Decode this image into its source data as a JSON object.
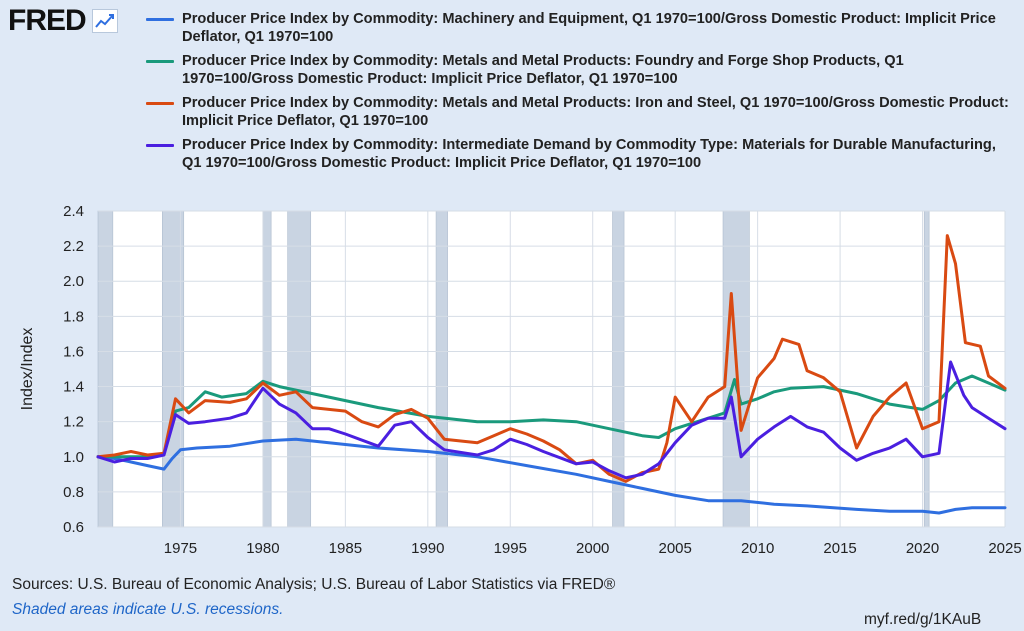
{
  "header": {
    "logo_text": "FRED",
    "logo_icon": "line-chart-icon"
  },
  "legend": [
    {
      "label": "Producer Price Index by Commodity: Machinery and Equipment, Q1 1970=100/Gross Domestic Product: Implicit Price Deflator, Q1 1970=100",
      "color": "#2f6fe0"
    },
    {
      "label": "Producer Price Index by Commodity: Metals and Metal Products: Foundry and Forge Shop Products, Q1 1970=100/Gross Domestic Product: Implicit Price Deflator, Q1 1970=100",
      "color": "#1a9a7c"
    },
    {
      "label": "Producer Price Index by Commodity: Metals and Metal Products: Iron and Steel, Q1 1970=100/Gross Domestic Product: Implicit Price Deflator, Q1 1970=100",
      "color": "#d94a12"
    },
    {
      "label": "Producer Price Index by Commodity: Intermediate Demand by Commodity Type: Materials for Durable Manufacturing, Q1 1970=100/Gross Domestic Product: Implicit Price Deflator, Q1 1970=100",
      "color": "#4a1fe0"
    }
  ],
  "chart_data": {
    "type": "line",
    "title": "",
    "xlabel": "",
    "ylabel": "Index/Index",
    "xlim": [
      1970,
      2025
    ],
    "ylim": [
      0.6,
      2.4
    ],
    "x_ticks": [
      "1975",
      "1980",
      "1985",
      "1990",
      "1995",
      "2000",
      "2005",
      "2010",
      "2015",
      "2020",
      "2025"
    ],
    "y_ticks": [
      "0.6",
      "0.8",
      "1.0",
      "1.2",
      "1.4",
      "1.6",
      "1.8",
      "2.0",
      "2.2",
      "2.4"
    ],
    "grid": true,
    "recessions": [
      [
        1970.0,
        1970.9
      ],
      [
        1973.9,
        1975.2
      ],
      [
        1980.0,
        1980.5
      ],
      [
        1981.5,
        1982.9
      ],
      [
        1990.5,
        1991.2
      ],
      [
        2001.2,
        2001.9
      ],
      [
        2007.9,
        2009.5
      ],
      [
        2020.1,
        2020.4
      ]
    ],
    "series": [
      {
        "name": "Producer Price Index by Commodity: Machinery and Equipment, Q1 1970=100/Gross Domestic Product: Implicit Price Deflator, Q1 1970=100",
        "color": "#2f6fe0",
        "points": [
          [
            1970,
            1.0
          ],
          [
            1971,
            0.99
          ],
          [
            1972,
            0.97
          ],
          [
            1973,
            0.95
          ],
          [
            1974,
            0.93
          ],
          [
            1974.5,
            0.99
          ],
          [
            1975,
            1.04
          ],
          [
            1976,
            1.05
          ],
          [
            1978,
            1.06
          ],
          [
            1980,
            1.09
          ],
          [
            1982,
            1.1
          ],
          [
            1983,
            1.09
          ],
          [
            1985,
            1.07
          ],
          [
            1987,
            1.05
          ],
          [
            1990,
            1.03
          ],
          [
            1993,
            1.0
          ],
          [
            1996,
            0.95
          ],
          [
            1999,
            0.9
          ],
          [
            2001,
            0.86
          ],
          [
            2003,
            0.82
          ],
          [
            2005,
            0.78
          ],
          [
            2007,
            0.75
          ],
          [
            2009,
            0.75
          ],
          [
            2011,
            0.73
          ],
          [
            2013,
            0.72
          ],
          [
            2016,
            0.7
          ],
          [
            2018,
            0.69
          ],
          [
            2020,
            0.69
          ],
          [
            2021,
            0.68
          ],
          [
            2022,
            0.7
          ],
          [
            2023,
            0.71
          ],
          [
            2025,
            0.71
          ]
        ]
      },
      {
        "name": "Producer Price Index by Commodity: Metals and Metal Products: Foundry and Forge Shop Products, Q1 1970=100/Gross Domestic Product: Implicit Price Deflator, Q1 1970=100",
        "color": "#1a9a7c",
        "points": [
          [
            1970,
            1.0
          ],
          [
            1971,
            1.0
          ],
          [
            1972,
            1.0
          ],
          [
            1973,
            1.0
          ],
          [
            1974,
            1.02
          ],
          [
            1974.7,
            1.26
          ],
          [
            1975.5,
            1.28
          ],
          [
            1976.5,
            1.37
          ],
          [
            1977.5,
            1.34
          ],
          [
            1979,
            1.36
          ],
          [
            1980,
            1.43
          ],
          [
            1981,
            1.4
          ],
          [
            1982,
            1.38
          ],
          [
            1983,
            1.36
          ],
          [
            1985,
            1.32
          ],
          [
            1987,
            1.28
          ],
          [
            1990,
            1.23
          ],
          [
            1993,
            1.2
          ],
          [
            1995,
            1.2
          ],
          [
            1997,
            1.21
          ],
          [
            1999,
            1.2
          ],
          [
            2001,
            1.16
          ],
          [
            2003,
            1.12
          ],
          [
            2004,
            1.11
          ],
          [
            2005,
            1.16
          ],
          [
            2006,
            1.19
          ],
          [
            2007,
            1.22
          ],
          [
            2008,
            1.25
          ],
          [
            2008.6,
            1.44
          ],
          [
            2009,
            1.3
          ],
          [
            2010,
            1.33
          ],
          [
            2011,
            1.37
          ],
          [
            2012,
            1.39
          ],
          [
            2014,
            1.4
          ],
          [
            2016,
            1.36
          ],
          [
            2018,
            1.3
          ],
          [
            2020,
            1.27
          ],
          [
            2021,
            1.32
          ],
          [
            2022,
            1.42
          ],
          [
            2023,
            1.46
          ],
          [
            2024,
            1.42
          ],
          [
            2025,
            1.38
          ]
        ]
      },
      {
        "name": "Producer Price Index by Commodity: Metals and Metal Products: Iron and Steel, Q1 1970=100/Gross Domestic Product: Implicit Price Deflator, Q1 1970=100",
        "color": "#d94a12",
        "points": [
          [
            1970,
            1.0
          ],
          [
            1971,
            1.01
          ],
          [
            1972,
            1.03
          ],
          [
            1973,
            1.01
          ],
          [
            1974,
            1.02
          ],
          [
            1974.7,
            1.33
          ],
          [
            1975.5,
            1.25
          ],
          [
            1976.5,
            1.32
          ],
          [
            1978,
            1.31
          ],
          [
            1979,
            1.33
          ],
          [
            1980,
            1.42
          ],
          [
            1981,
            1.35
          ],
          [
            1982,
            1.37
          ],
          [
            1983,
            1.28
          ],
          [
            1985,
            1.26
          ],
          [
            1986,
            1.2
          ],
          [
            1987,
            1.17
          ],
          [
            1988,
            1.24
          ],
          [
            1989,
            1.27
          ],
          [
            1990,
            1.22
          ],
          [
            1991,
            1.1
          ],
          [
            1992,
            1.09
          ],
          [
            1993,
            1.08
          ],
          [
            1994,
            1.12
          ],
          [
            1995,
            1.16
          ],
          [
            1996,
            1.13
          ],
          [
            1997,
            1.09
          ],
          [
            1998,
            1.04
          ],
          [
            1999,
            0.96
          ],
          [
            2000,
            0.98
          ],
          [
            2001,
            0.9
          ],
          [
            2002,
            0.86
          ],
          [
            2003,
            0.91
          ],
          [
            2004,
            0.93
          ],
          [
            2004.5,
            1.08
          ],
          [
            2005,
            1.34
          ],
          [
            2006,
            1.2
          ],
          [
            2007,
            1.34
          ],
          [
            2008,
            1.4
          ],
          [
            2008.4,
            1.93
          ],
          [
            2009,
            1.15
          ],
          [
            2010,
            1.45
          ],
          [
            2011,
            1.56
          ],
          [
            2011.5,
            1.67
          ],
          [
            2012.5,
            1.64
          ],
          [
            2013,
            1.49
          ],
          [
            2014,
            1.45
          ],
          [
            2015,
            1.37
          ],
          [
            2016,
            1.05
          ],
          [
            2017,
            1.23
          ],
          [
            2018,
            1.34
          ],
          [
            2019,
            1.42
          ],
          [
            2020,
            1.16
          ],
          [
            2021,
            1.2
          ],
          [
            2021.5,
            2.26
          ],
          [
            2022,
            2.1
          ],
          [
            2022.6,
            1.65
          ],
          [
            2023.5,
            1.63
          ],
          [
            2024,
            1.46
          ],
          [
            2025,
            1.39
          ]
        ]
      },
      {
        "name": "Producer Price Index by Commodity: Intermediate Demand by Commodity Type: Materials for Durable Manufacturing, Q1 1970=100/Gross Domestic Product: Implicit Price Deflator, Q1 1970=100",
        "color": "#4a1fe0",
        "points": [
          [
            1970,
            1.0
          ],
          [
            1971,
            0.97
          ],
          [
            1972,
            0.99
          ],
          [
            1973,
            0.99
          ],
          [
            1974,
            1.01
          ],
          [
            1974.7,
            1.24
          ],
          [
            1975.5,
            1.19
          ],
          [
            1976.5,
            1.2
          ],
          [
            1978,
            1.22
          ],
          [
            1979,
            1.25
          ],
          [
            1980,
            1.39
          ],
          [
            1981,
            1.3
          ],
          [
            1982,
            1.25
          ],
          [
            1983,
            1.16
          ],
          [
            1984,
            1.16
          ],
          [
            1985,
            1.13
          ],
          [
            1987,
            1.06
          ],
          [
            1988,
            1.18
          ],
          [
            1989,
            1.2
          ],
          [
            1990,
            1.11
          ],
          [
            1991,
            1.04
          ],
          [
            1993,
            1.01
          ],
          [
            1994,
            1.04
          ],
          [
            1995,
            1.1
          ],
          [
            1996,
            1.07
          ],
          [
            1997,
            1.03
          ],
          [
            1999,
            0.96
          ],
          [
            2000,
            0.97
          ],
          [
            2001,
            0.92
          ],
          [
            2002,
            0.88
          ],
          [
            2003,
            0.9
          ],
          [
            2004,
            0.96
          ],
          [
            2005,
            1.08
          ],
          [
            2006,
            1.18
          ],
          [
            2007,
            1.22
          ],
          [
            2008,
            1.22
          ],
          [
            2008.4,
            1.34
          ],
          [
            2009,
            1.0
          ],
          [
            2010,
            1.1
          ],
          [
            2011,
            1.17
          ],
          [
            2012,
            1.23
          ],
          [
            2013,
            1.17
          ],
          [
            2014,
            1.14
          ],
          [
            2015,
            1.05
          ],
          [
            2016,
            0.98
          ],
          [
            2017,
            1.02
          ],
          [
            2018,
            1.05
          ],
          [
            2019,
            1.1
          ],
          [
            2020,
            1.0
          ],
          [
            2021,
            1.02
          ],
          [
            2021.7,
            1.54
          ],
          [
            2022.5,
            1.35
          ],
          [
            2023,
            1.28
          ],
          [
            2024,
            1.22
          ],
          [
            2025,
            1.16
          ]
        ]
      }
    ]
  },
  "footer": {
    "sources": "Sources: U.S. Bureau of Economic Analysis; U.S. Bureau of Labor Statistics via FRED®",
    "recessions_note": "Shaded areas indicate U.S. recessions.",
    "short_url": "myf.red/g/1KAuB"
  }
}
